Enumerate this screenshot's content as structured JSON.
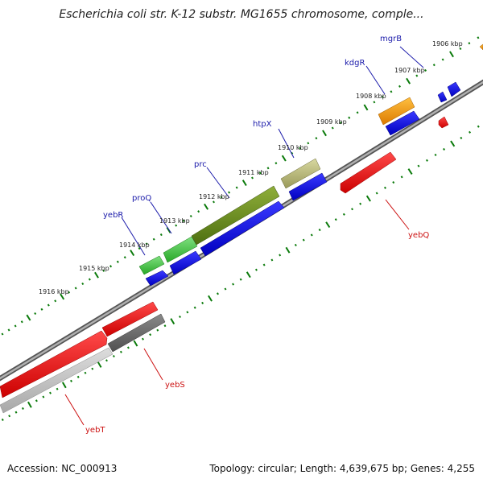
{
  "title": "Escherichia coli str. K-12 substr. MG1655 chromosome, comple...",
  "footer": {
    "accession": "Accession: NC_000913",
    "summary": "Topology: circular; Length: 4,639,675 bp; Genes: 4,255"
  },
  "colors": {
    "background": "#ffffff",
    "tick_green": "#0a7a0a",
    "backbone": "#888888",
    "forward_gene_label": "#1a1aaa",
    "reverse_gene_label": "#cc1111",
    "cds_blue": "#1010dd",
    "reverse_red": "#ee0000"
  },
  "kbp_labels": [
    "1906 kbp",
    "1907 kbp",
    "1908 kbp",
    "1909 kbp",
    "1910 kbp",
    "1911 kbp",
    "1912 kbp",
    "1913 kbp",
    "1914 kbp",
    "1915 kbp",
    "1916 kbp"
  ],
  "genes_forward": [
    {
      "name": "mgrB",
      "color": "#1a1aaa"
    },
    {
      "name": "kdgR",
      "color": "#1a1aaa"
    },
    {
      "name": "htpX",
      "color": "#1a1aaa"
    },
    {
      "name": "prc",
      "color": "#1a1aaa"
    },
    {
      "name": "proQ",
      "color": "#1a1aaa"
    },
    {
      "name": "yebR",
      "color": "#1a1aaa"
    }
  ],
  "genes_reverse": [
    {
      "name": "yebQ",
      "color": "#cc1111"
    },
    {
      "name": "yebS",
      "color": "#cc1111"
    },
    {
      "name": "yebT",
      "color": "#cc1111"
    }
  ]
}
